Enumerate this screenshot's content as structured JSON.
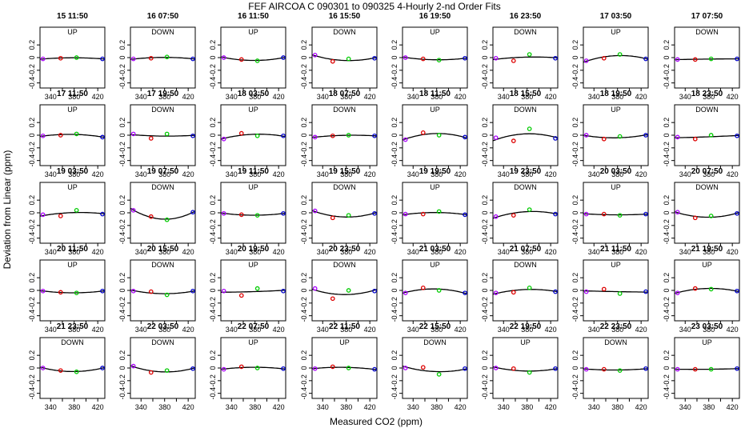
{
  "chart_data": {
    "type": "scatter",
    "title": "FEF   AIRCOA C   090301 to 090325   4-Hourly 2-nd Order Fits",
    "xlabel": "Measured CO2 (ppm)",
    "ylabel": "Deviation from Linear (ppm)",
    "xlim": [
      322,
      432
    ],
    "ylim": [
      -0.48,
      0.48
    ],
    "xticks": [
      "340",
      "380",
      "420"
    ],
    "xticks_minor": [
      360,
      400
    ],
    "yticks": [
      "0.2",
      "0",
      "-0.2",
      "-0.4"
    ],
    "ytick_values": [
      0.2,
      0,
      -0.2,
      -0.4
    ],
    "x_positions": [
      327,
      357,
      384,
      428
    ],
    "colors": {
      "point_standard_1": "#aa00ff",
      "point_standard_2": "#dd0000",
      "point_standard_3": "#00cc00",
      "point_standard_4": "#0000cc",
      "fit_curve": "#000000",
      "frame": "#000000"
    },
    "panels": [
      {
        "label": "15 11:50",
        "direction": "UP",
        "y": [
          -0.02,
          -0.01,
          0.0,
          -0.02
        ]
      },
      {
        "label": "16 07:50",
        "direction": "DOWN",
        "y": [
          -0.02,
          -0.01,
          0.01,
          -0.02
        ]
      },
      {
        "label": "16 11:50",
        "direction": "UP",
        "y": [
          0.0,
          -0.03,
          -0.05,
          0.0
        ]
      },
      {
        "label": "16 15:50",
        "direction": "DOWN",
        "y": [
          0.04,
          -0.06,
          -0.02,
          -0.01
        ]
      },
      {
        "label": "16 19:50",
        "direction": "UP",
        "y": [
          0.0,
          -0.02,
          -0.04,
          -0.01
        ]
      },
      {
        "label": "16 23:50",
        "direction": "DOWN",
        "y": [
          -0.01,
          -0.05,
          0.05,
          -0.01
        ]
      },
      {
        "label": "17 03:50",
        "direction": "UP",
        "y": [
          -0.05,
          -0.01,
          0.05,
          -0.02
        ]
      },
      {
        "label": "17 07:50",
        "direction": "DOWN",
        "y": [
          -0.03,
          -0.03,
          -0.02,
          -0.02
        ]
      },
      {
        "label": "17 11:50",
        "direction": "UP",
        "y": [
          -0.01,
          0.0,
          0.02,
          -0.03
        ]
      },
      {
        "label": "17 19:50",
        "direction": "DOWN",
        "y": [
          0.02,
          -0.05,
          0.02,
          -0.01
        ]
      },
      {
        "label": "18 03:50",
        "direction": "UP",
        "y": [
          -0.06,
          0.03,
          -0.01,
          -0.01
        ]
      },
      {
        "label": "18 07:50",
        "direction": "DOWN",
        "y": [
          -0.03,
          -0.01,
          0.0,
          -0.01
        ]
      },
      {
        "label": "18 11:50",
        "direction": "UP",
        "y": [
          -0.07,
          0.04,
          0.0,
          -0.03
        ]
      },
      {
        "label": "18 15:50",
        "direction": "DOWN",
        "y": [
          -0.04,
          -0.09,
          0.1,
          -0.05
        ]
      },
      {
        "label": "18 19:50",
        "direction": "UP",
        "y": [
          0.0,
          -0.06,
          -0.02,
          0.0
        ]
      },
      {
        "label": "18 23:50",
        "direction": "DOWN",
        "y": [
          -0.03,
          -0.06,
          0.0,
          -0.01
        ]
      },
      {
        "label": "19 03:50",
        "direction": "UP",
        "y": [
          -0.03,
          -0.05,
          0.04,
          -0.02
        ]
      },
      {
        "label": "19 07:50",
        "direction": "DOWN",
        "y": [
          0.04,
          -0.06,
          -0.11,
          0.01
        ]
      },
      {
        "label": "19 11:50",
        "direction": "UP",
        "y": [
          -0.01,
          -0.03,
          -0.04,
          -0.01
        ]
      },
      {
        "label": "19 15:50",
        "direction": "DOWN",
        "y": [
          0.03,
          -0.08,
          -0.04,
          -0.01
        ]
      },
      {
        "label": "19 19:50",
        "direction": "UP",
        "y": [
          -0.02,
          -0.02,
          0.02,
          -0.03
        ]
      },
      {
        "label": "19 23:50",
        "direction": "DOWN",
        "y": [
          -0.06,
          -0.04,
          0.05,
          -0.02
        ]
      },
      {
        "label": "20 03:50",
        "direction": "UP",
        "y": [
          -0.02,
          -0.02,
          -0.04,
          -0.02
        ]
      },
      {
        "label": "20 07:50",
        "direction": "DOWN",
        "y": [
          0.01,
          -0.08,
          -0.05,
          -0.01
        ]
      },
      {
        "label": "20 11:50",
        "direction": "UP",
        "y": [
          -0.01,
          -0.03,
          -0.04,
          -0.01
        ]
      },
      {
        "label": "20 15:50",
        "direction": "DOWN",
        "y": [
          -0.01,
          -0.02,
          -0.07,
          -0.01
        ]
      },
      {
        "label": "20 19:50",
        "direction": "UP",
        "y": [
          -0.01,
          -0.08,
          0.03,
          -0.01
        ]
      },
      {
        "label": "20 23:50",
        "direction": "DOWN",
        "y": [
          0.03,
          -0.13,
          0.0,
          -0.01
        ]
      },
      {
        "label": "21 03:50",
        "direction": "UP",
        "y": [
          -0.04,
          0.04,
          0.0,
          -0.04
        ]
      },
      {
        "label": "21 07:50",
        "direction": "DOWN",
        "y": [
          -0.04,
          -0.03,
          0.04,
          -0.02
        ]
      },
      {
        "label": "21 11:50",
        "direction": "UP",
        "y": [
          -0.02,
          0.02,
          -0.05,
          -0.02
        ]
      },
      {
        "label": "21 19:50",
        "direction": "UP",
        "y": [
          -0.04,
          0.03,
          0.02,
          -0.01
        ]
      },
      {
        "label": "21 23:50",
        "direction": "DOWN",
        "y": [
          0.0,
          -0.04,
          -0.06,
          0.0
        ]
      },
      {
        "label": "22 03:50",
        "direction": "DOWN",
        "y": [
          0.03,
          -0.07,
          -0.04,
          -0.01
        ]
      },
      {
        "label": "22 07:50",
        "direction": "UP",
        "y": [
          -0.02,
          0.02,
          0.0,
          -0.01
        ]
      },
      {
        "label": "22 11:50",
        "direction": "UP",
        "y": [
          -0.01,
          0.02,
          0.0,
          -0.02
        ]
      },
      {
        "label": "22 15:50",
        "direction": "DOWN",
        "y": [
          0.0,
          0.01,
          -0.1,
          -0.01
        ]
      },
      {
        "label": "22 19:50",
        "direction": "UP",
        "y": [
          0.0,
          -0.01,
          -0.07,
          -0.01
        ]
      },
      {
        "label": "22 23:50",
        "direction": "DOWN",
        "y": [
          -0.02,
          -0.02,
          -0.04,
          -0.01
        ]
      },
      {
        "label": "23 03:50",
        "direction": "UP",
        "y": [
          -0.02,
          -0.02,
          -0.02,
          -0.01
        ]
      }
    ]
  }
}
